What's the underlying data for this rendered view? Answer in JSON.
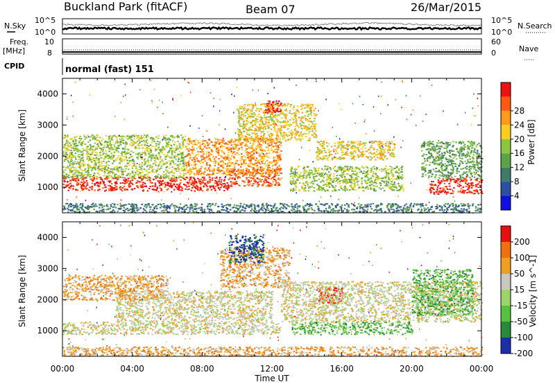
{
  "header": {
    "title": "Buckland Park (fitACF)",
    "beam": "Beam 07",
    "date": "26/Mar/2015"
  },
  "side_labels": {
    "nsky": "N.Sky",
    "nsearch": "N.Search",
    "freq_line1": "Freq.",
    "freq_line2": "[MHz]",
    "nave": "Nave",
    "cpid": "CPID"
  },
  "noise_axis": {
    "top": "10^5",
    "bottom": "10^0"
  },
  "freq_axis": {
    "left_top": "10",
    "left_bottom": "8",
    "right_top": "60",
    "right_bottom": "0"
  },
  "cpid_text": "normal (fast) 151",
  "chart_data": [
    {
      "type": "heatmap",
      "title": "",
      "xlabel": "",
      "ylabel": "Slant Range [km]",
      "x_ticks": [
        "00:00",
        "04:00",
        "08:00",
        "12:00",
        "16:00",
        "20:00",
        "00:00"
      ],
      "y_ticks": [
        "1000",
        "2000",
        "3000",
        "4000"
      ],
      "ylim": [
        180,
        4500
      ],
      "xlim_hours": [
        0,
        24
      ],
      "colorbar": {
        "label": "Power [dB]",
        "ticks": [
          "4",
          "8",
          "12",
          "16",
          "20",
          "24",
          "28"
        ],
        "colors": [
          "#1010e0",
          "#2c4fa4",
          "#3f7a6a",
          "#5ea24a",
          "#8cc63f",
          "#ffcc22",
          "#ff9a1a",
          "#ff5a10",
          "#ee1111"
        ]
      },
      "bands": [
        {
          "start_h": 0.0,
          "end_h": 9.5,
          "range_lo": 900,
          "range_hi": 1350,
          "level": 8
        },
        {
          "start_h": 9.5,
          "end_h": 12.5,
          "range_lo": 1050,
          "range_hi": 1600,
          "level": 7
        },
        {
          "start_h": 7.0,
          "end_h": 12.5,
          "range_lo": 1400,
          "range_hi": 2600,
          "level": 6
        },
        {
          "start_h": 0.0,
          "end_h": 7.0,
          "range_lo": 1300,
          "range_hi": 2700,
          "level": 4
        },
        {
          "start_h": 10.0,
          "end_h": 14.5,
          "range_lo": 2500,
          "range_hi": 3700,
          "level": 5
        },
        {
          "start_h": 11.5,
          "end_h": 12.5,
          "range_lo": 3400,
          "range_hi": 3800,
          "level": 8
        },
        {
          "start_h": 13.0,
          "end_h": 19.5,
          "range_lo": 900,
          "range_hi": 1700,
          "level": 4
        },
        {
          "start_h": 14.5,
          "end_h": 19.0,
          "range_lo": 1900,
          "range_hi": 2500,
          "level": 5
        },
        {
          "start_h": 21.0,
          "end_h": 24.0,
          "range_lo": 800,
          "range_hi": 1300,
          "level": 8
        },
        {
          "start_h": 20.5,
          "end_h": 24.0,
          "range_lo": 1300,
          "range_hi": 2500,
          "level": 3
        },
        {
          "start_h": 0.0,
          "end_h": 24.0,
          "range_lo": 200,
          "range_hi": 500,
          "level": 2
        }
      ]
    },
    {
      "type": "heatmap",
      "title": "",
      "xlabel": "Time UT",
      "ylabel": "Slant Range [km]",
      "x_ticks": [
        "00:00",
        "04:00",
        "08:00",
        "12:00",
        "16:00",
        "20:00",
        "00:00"
      ],
      "y_ticks": [
        "1000",
        "2000",
        "3000",
        "4000"
      ],
      "ylim": [
        180,
        4500
      ],
      "xlim_hours": [
        0,
        24
      ],
      "colorbar": {
        "label": "Velocity [m s^-1]",
        "ticks": [
          "200",
          "100",
          "50",
          "15",
          "-15",
          "-50",
          "-100",
          "-200"
        ],
        "colors": [
          "#1a2fa8",
          "#2a8a3a",
          "#58c040",
          "#9ad46a",
          "#c8c8c0",
          "#f0a020",
          "#f07010",
          "#e81010"
        ]
      },
      "bands": [
        {
          "start_h": 0.0,
          "end_h": 12.5,
          "range_lo": 900,
          "range_hi": 1300,
          "level": 4
        },
        {
          "start_h": 3.0,
          "end_h": 12.0,
          "range_lo": 1300,
          "range_hi": 2300,
          "level": 4
        },
        {
          "start_h": 0.0,
          "end_h": 6.0,
          "range_lo": 2000,
          "range_hi": 2800,
          "level": 5
        },
        {
          "start_h": 9.0,
          "end_h": 13.0,
          "range_lo": 2400,
          "range_hi": 3700,
          "level": 5
        },
        {
          "start_h": 9.5,
          "end_h": 11.5,
          "range_lo": 3200,
          "range_hi": 4100,
          "level": 0
        },
        {
          "start_h": 14.5,
          "end_h": 16.0,
          "range_lo": 1900,
          "range_hi": 2400,
          "level": 7
        },
        {
          "start_h": 12.5,
          "end_h": 24.0,
          "range_lo": 1300,
          "range_hi": 2600,
          "level": 4
        },
        {
          "start_h": 13.0,
          "end_h": 20.0,
          "range_lo": 900,
          "range_hi": 1300,
          "level": 2
        },
        {
          "start_h": 20.0,
          "end_h": 23.5,
          "range_lo": 1500,
          "range_hi": 3000,
          "level": 2
        },
        {
          "start_h": 0.0,
          "end_h": 24.0,
          "range_lo": 200,
          "range_hi": 500,
          "level": 5
        }
      ]
    }
  ]
}
